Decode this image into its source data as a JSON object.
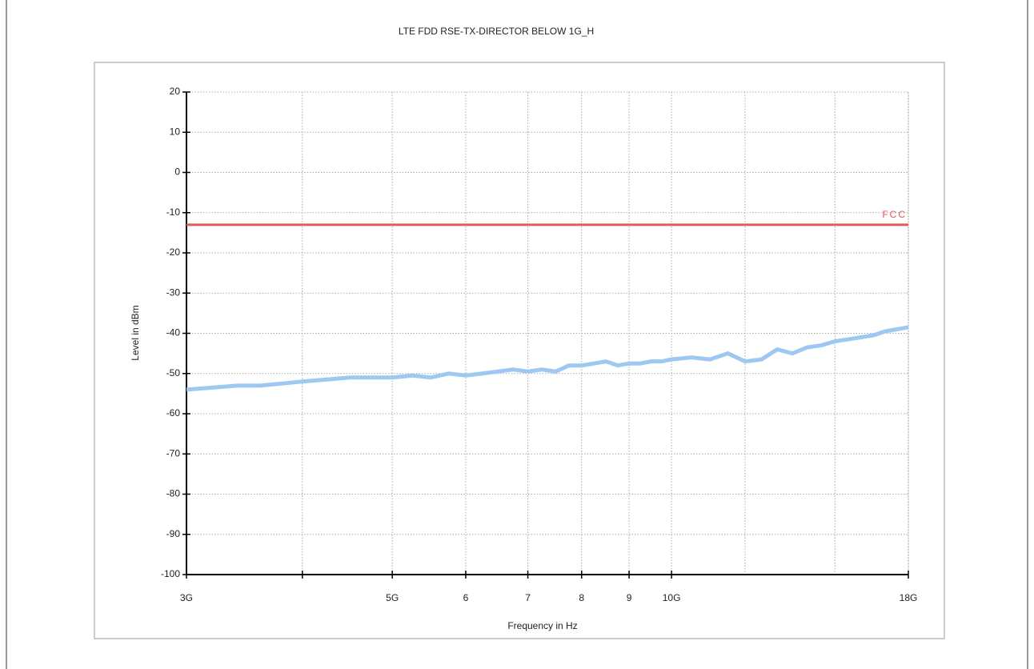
{
  "chart_data": {
    "type": "line",
    "title": "LTE FDD RSE-TX-DIRECTOR BELOW 1G_H",
    "x_label": "Frequency in Hz",
    "y_label": "Level in dBm",
    "xscale": "log",
    "grid": true,
    "xlim": [
      3,
      18
    ],
    "ylim": [
      -100,
      20
    ],
    "xticks": [
      {
        "value": 3,
        "label": "3G"
      },
      {
        "value": 4,
        "label": null
      },
      {
        "value": 5,
        "label": "5G"
      },
      6,
      7,
      8,
      9,
      {
        "value": 10,
        "label": "10G"
      },
      {
        "value": 12,
        "label": null
      },
      {
        "value": 15,
        "label": null
      },
      {
        "value": 18,
        "label": "18G"
      }
    ],
    "yticks": [
      -100,
      -90,
      -80,
      -70,
      -60,
      -50,
      -40,
      -30,
      -20,
      -10,
      0,
      10,
      20
    ],
    "series": [
      {
        "name": "Level",
        "color": "#9ec8f2",
        "x": [
          3,
          3.2,
          3.4,
          3.6,
          3.8,
          4,
          4.25,
          4.5,
          4.75,
          5,
          5.25,
          5.5,
          5.75,
          6,
          6.25,
          6.5,
          6.75,
          7,
          7.25,
          7.5,
          7.75,
          8,
          8.25,
          8.5,
          8.75,
          9,
          9.25,
          9.5,
          9.75,
          10,
          10.5,
          11,
          11.5,
          12,
          12.5,
          13,
          13.5,
          14,
          14.5,
          15,
          15.5,
          16,
          16.5,
          17,
          17.5,
          18
        ],
        "values": [
          -54,
          -53.5,
          -53,
          -53,
          -52.5,
          -52,
          -51.5,
          -51,
          -51,
          -51,
          -50.5,
          -51,
          -50,
          -50.5,
          -50,
          -49.5,
          -49,
          -49.5,
          -49,
          -49.5,
          -48,
          -48,
          -47.5,
          -47,
          -48,
          -47.5,
          -47.5,
          -47,
          -47,
          -46.5,
          -46,
          -46.5,
          -45,
          -47,
          -46.5,
          -44,
          -45,
          -43.5,
          -43,
          -42,
          -41.5,
          -41,
          -40.5,
          -39.5,
          -39,
          -38.5
        ]
      },
      {
        "name": "FCC",
        "color": "#e05a5a",
        "x": [
          3,
          18
        ],
        "values": [
          -13,
          -13
        ]
      }
    ]
  }
}
